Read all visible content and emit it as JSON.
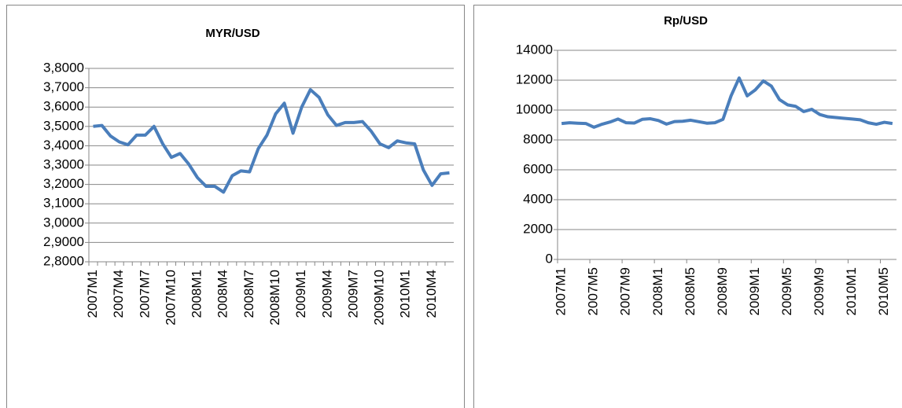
{
  "chart_data": [
    {
      "type": "line",
      "title": "MYR/USD",
      "categories": [
        "2007M1",
        null,
        null,
        "2007M4",
        null,
        null,
        "2007M7",
        null,
        null,
        "2007M10",
        null,
        null,
        "2008M1",
        null,
        null,
        "2008M4",
        null,
        null,
        "2008M7",
        null,
        null,
        "2008M10",
        null,
        null,
        "2009M1",
        null,
        null,
        "2009M4",
        null,
        null,
        "2009M7",
        null,
        null,
        "2009M10",
        null,
        null,
        "2010M1",
        null,
        null,
        "2010M4",
        null,
        null
      ],
      "series": [
        {
          "color": "#4a7ebb",
          "values": [
            3.5,
            3.505,
            3.45,
            3.42,
            3.405,
            3.455,
            3.455,
            3.5,
            3.41,
            3.34,
            3.36,
            3.305,
            3.235,
            3.19,
            3.19,
            3.16,
            3.245,
            3.27,
            3.265,
            3.385,
            3.455,
            3.565,
            3.62,
            3.465,
            3.6,
            3.69,
            3.65,
            3.56,
            3.505,
            3.52,
            3.52,
            3.525,
            3.475,
            3.41,
            3.39,
            3.425,
            3.415,
            3.41,
            3.275,
            3.195,
            3.255,
            3.26
          ]
        }
      ],
      "ylim": [
        2.8,
        3.8
      ],
      "yticks": [
        {
          "value": 2.8,
          "label": "2,8000"
        },
        {
          "value": 2.9,
          "label": "2,9000"
        },
        {
          "value": 3.0,
          "label": "3,0000"
        },
        {
          "value": 3.1,
          "label": "3,1000"
        },
        {
          "value": 3.2,
          "label": "3,2000"
        },
        {
          "value": 3.3,
          "label": "3,3000"
        },
        {
          "value": 3.4,
          "label": "3,4000"
        },
        {
          "value": 3.5,
          "label": "3,5000"
        },
        {
          "value": 3.6,
          "label": "3,6000"
        },
        {
          "value": 3.7,
          "label": "3,7000"
        },
        {
          "value": 3.8,
          "label": "3,8000"
        }
      ],
      "grid": true
    },
    {
      "type": "line",
      "title": "Rp/USD",
      "categories": [
        "2007M1",
        null,
        null,
        null,
        "2007M5",
        null,
        null,
        null,
        "2007M9",
        null,
        null,
        null,
        "2008M1",
        null,
        null,
        null,
        "2008M5",
        null,
        null,
        null,
        "2008M9",
        null,
        null,
        null,
        "2009M1",
        null,
        null,
        null,
        "2009M5",
        null,
        null,
        null,
        "2009M9",
        null,
        null,
        null,
        "2010M1",
        null,
        null,
        null,
        "2010M5",
        null
      ],
      "series": [
        {
          "color": "#4a7ebb",
          "values": [
            9100,
            9150,
            9120,
            9100,
            8850,
            9050,
            9200,
            9400,
            9150,
            9130,
            9380,
            9420,
            9300,
            9060,
            9230,
            9250,
            9320,
            9220,
            9120,
            9150,
            9380,
            10950,
            12150,
            10950,
            11350,
            11950,
            11600,
            10700,
            10350,
            10250,
            9900,
            10050,
            9700,
            9550,
            9500,
            9450,
            9400,
            9350,
            9150,
            9050,
            9180,
            9100
          ]
        }
      ],
      "ylim": [
        0,
        14000
      ],
      "yticks": [
        0,
        2000,
        4000,
        6000,
        8000,
        10000,
        12000,
        14000
      ],
      "grid": true
    }
  ]
}
